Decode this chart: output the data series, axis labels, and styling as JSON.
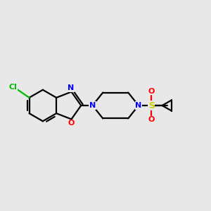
{
  "bg_color": "#e8e8e8",
  "bond_color": "#000000",
  "bond_width": 1.6,
  "cl_color": "#00bb00",
  "n_color": "#0000ff",
  "o_color": "#ff0000",
  "s_color": "#cccc00",
  "figsize": [
    3.0,
    3.0
  ],
  "dpi": 100,
  "xlim": [
    0,
    10
  ],
  "ylim": [
    2,
    8
  ]
}
